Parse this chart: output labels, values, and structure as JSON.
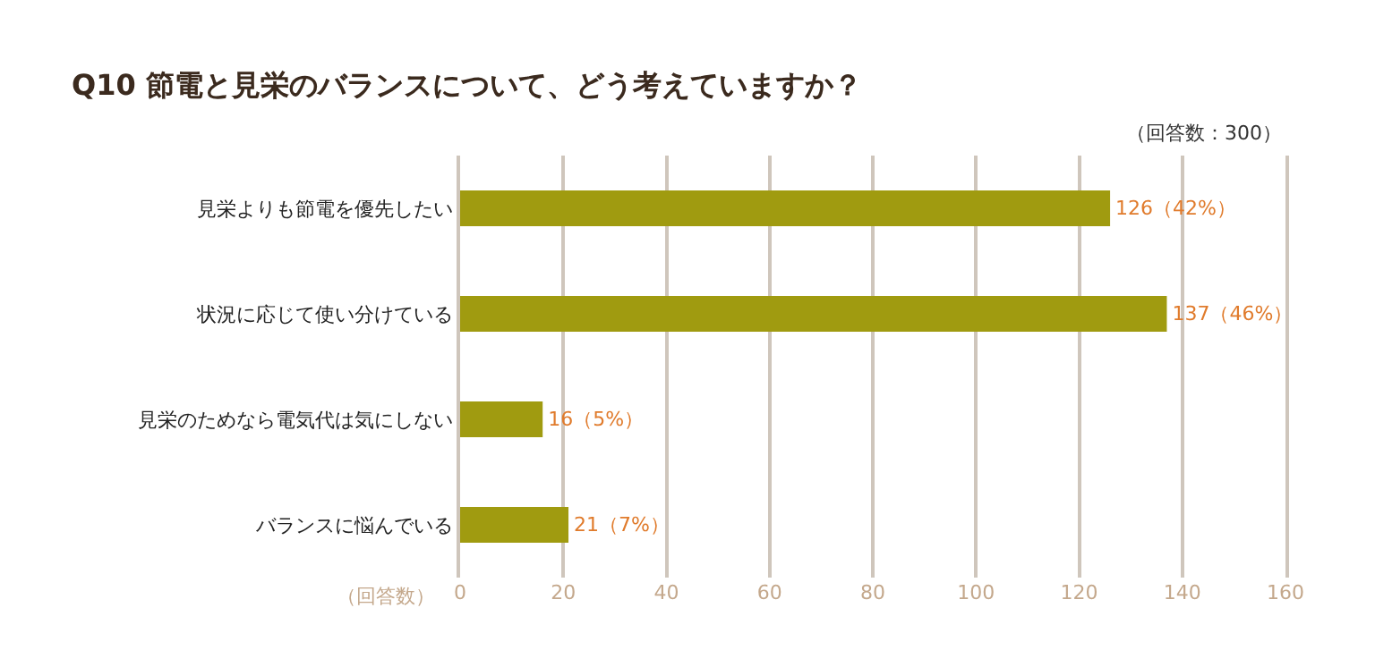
{
  "chart_data": {
    "type": "bar",
    "orientation": "horizontal",
    "title": "Q10 節電と見栄のバランスについて、どう考えていますか？",
    "xlabel": "（回答数）",
    "annotations": [
      "（回答数：300）"
    ],
    "categories": [
      "見栄よりも節電を優先したい",
      "状況に応じて使い分けている",
      "見栄のためなら電気代は気にしない",
      "バランスに悩んでいる"
    ],
    "values": [
      126,
      137,
      16,
      21
    ],
    "value_labels": [
      "126（42%）",
      "137（46%）",
      "16（5%）",
      "21（7%）"
    ],
    "color": "#a09b10",
    "xlim": [
      0,
      160
    ],
    "xticks": [
      0,
      20,
      40,
      60,
      80,
      100,
      120,
      140,
      160
    ],
    "grid": "x",
    "legend": false
  }
}
